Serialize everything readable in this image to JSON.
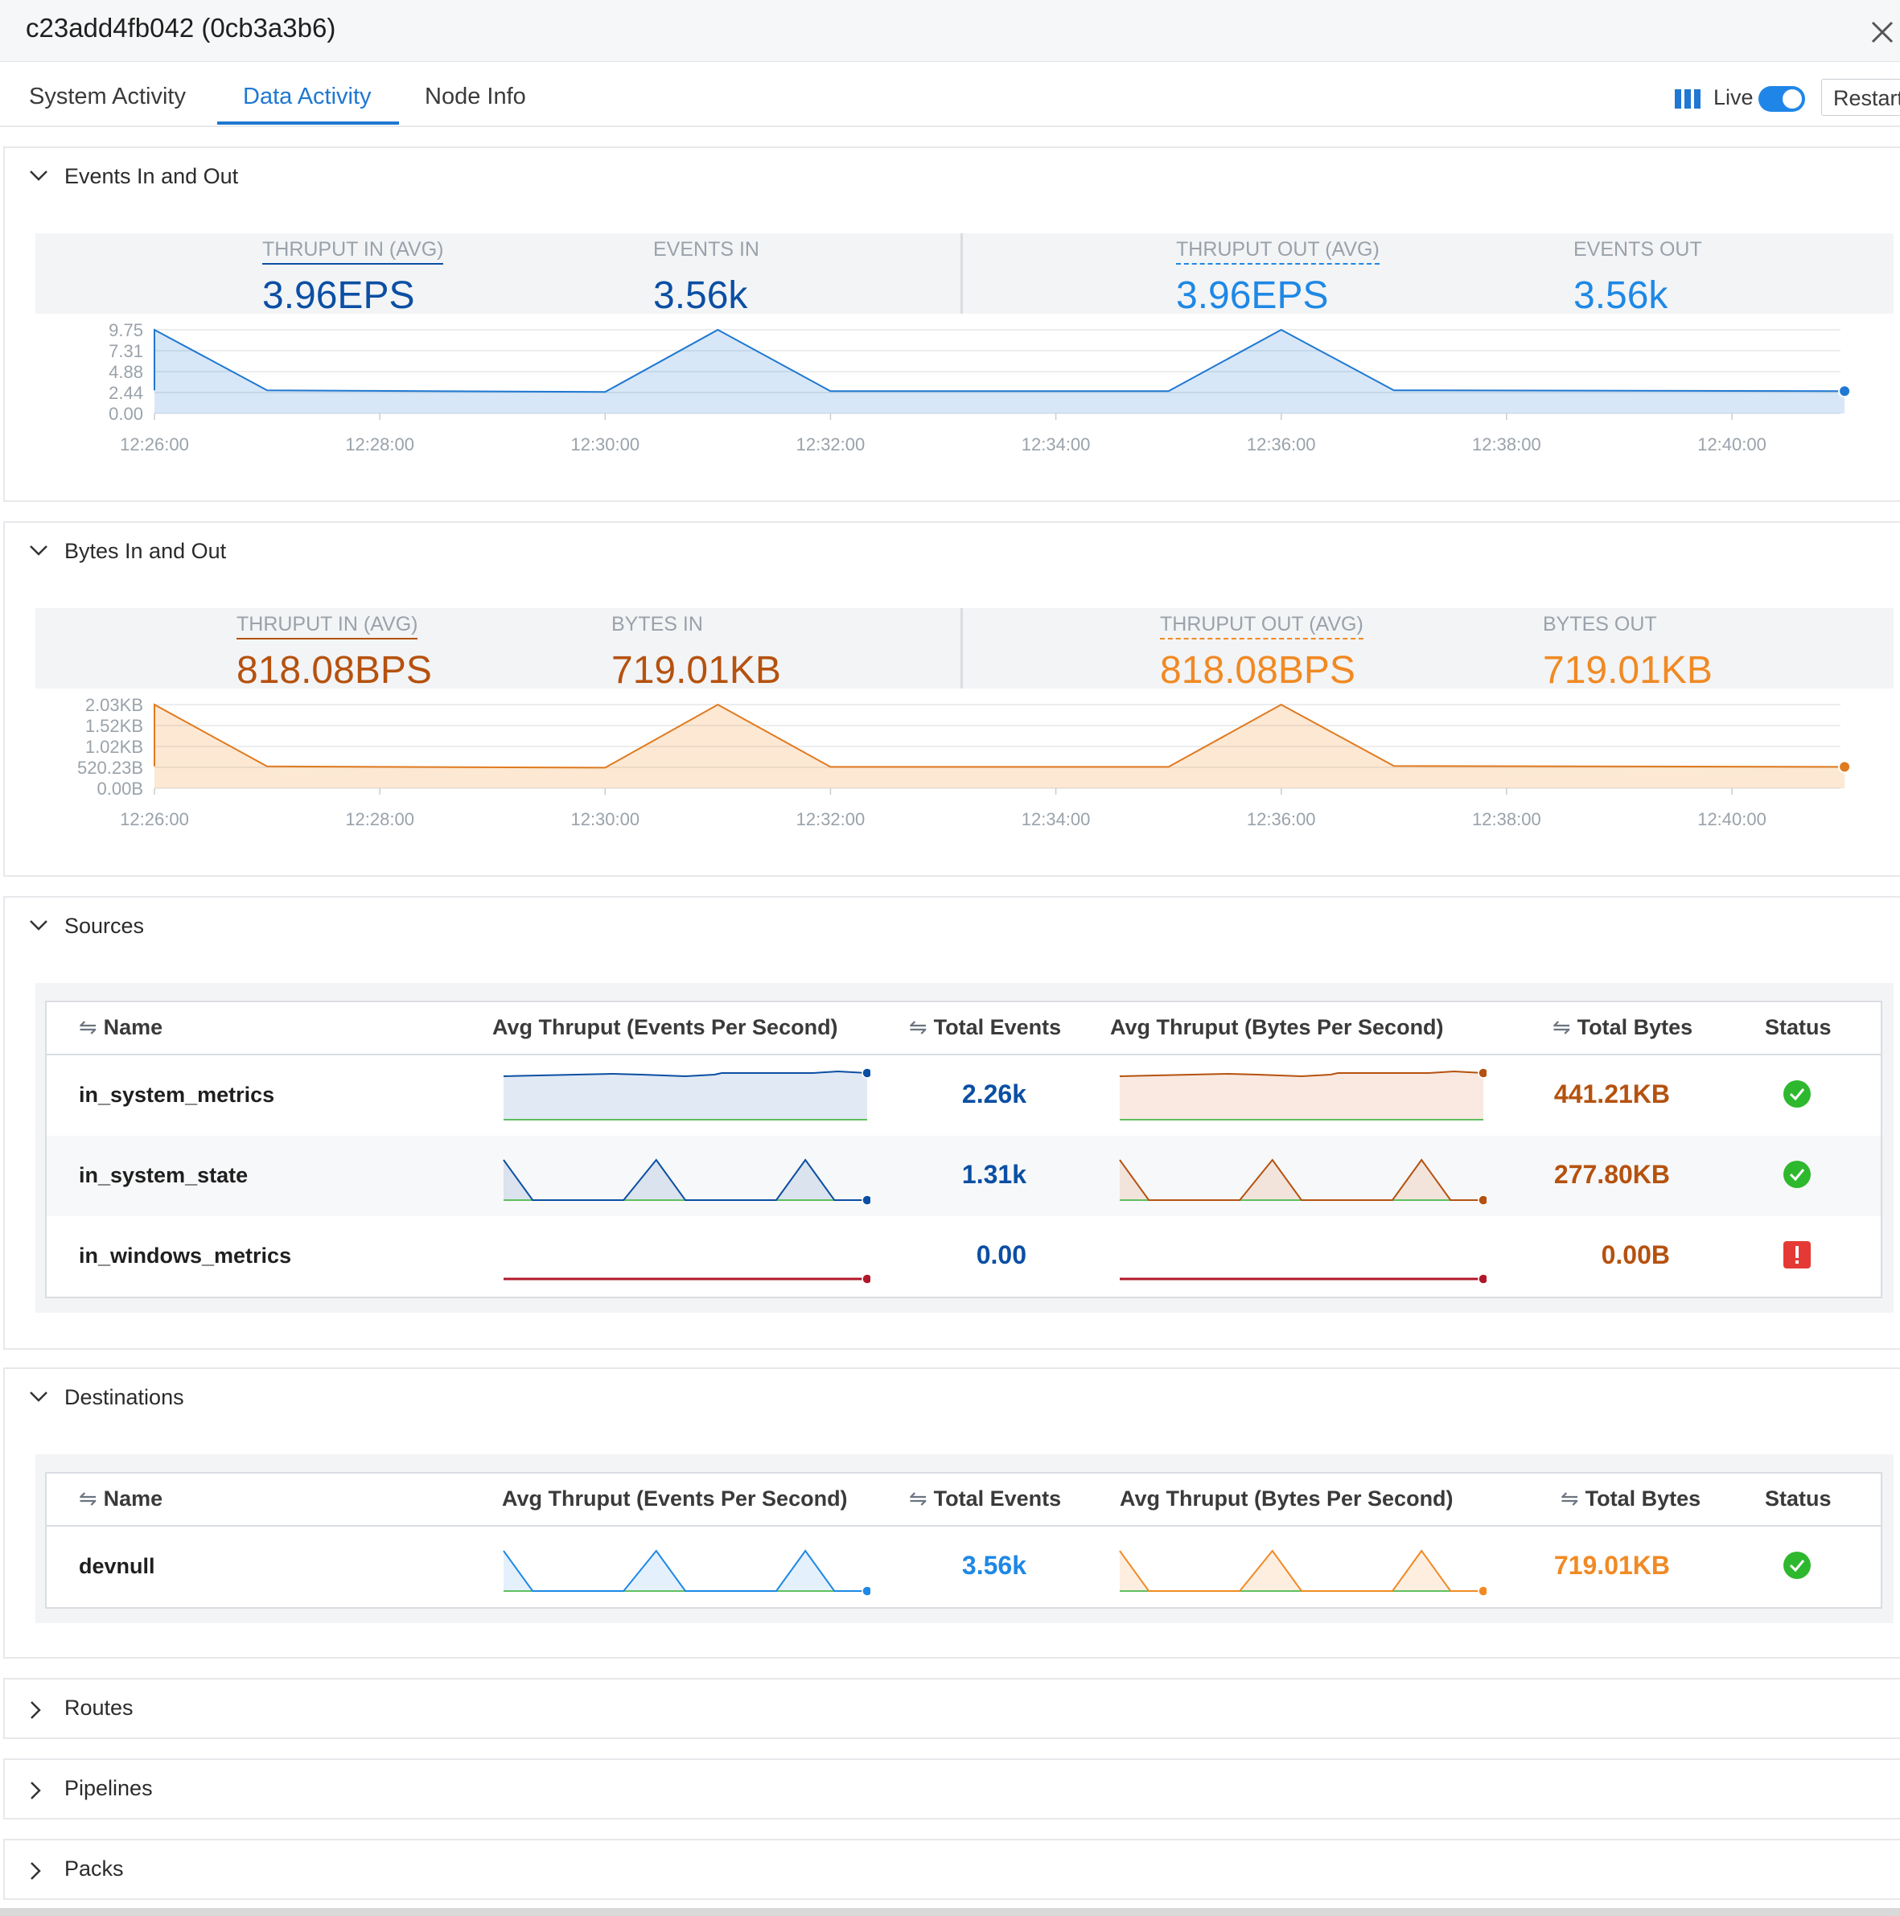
{
  "window": {
    "title": "c23add4fb042 (0cb3a3b6)"
  },
  "tabs": [
    {
      "label": "System Activity"
    },
    {
      "label": "Data Activity"
    },
    {
      "label": "Node Info"
    }
  ],
  "live": {
    "label": "Live",
    "enabled": true,
    "restart_label": "Restart"
  },
  "colors": {
    "accent_blue": "#1f78d1",
    "dark_blue": "#0b4fa3",
    "light_blue": "#1e88e5",
    "dark_orange": "#b5520f",
    "light_orange": "#f08a24",
    "success_green": "#2eb82e",
    "error_red": "#e53935"
  },
  "events_section": {
    "title": "Events In and Out",
    "stats": {
      "thruput_in_label": "THRUPUT IN (AVG)",
      "thruput_in_value": "3.96EPS",
      "events_in_label": "EVENTS IN",
      "events_in_value": "3.56k",
      "thruput_out_label": "THRUPUT OUT (AVG)",
      "thruput_out_value": "3.96EPS",
      "events_out_label": "EVENTS OUT",
      "events_out_value": "3.56k"
    },
    "chart_data": {
      "type": "area",
      "yticks": [
        "9.75",
        "7.31",
        "4.88",
        "2.44",
        "0.00"
      ],
      "ylim": [
        0,
        9.75
      ],
      "xticks": [
        "12:26:00",
        "12:28:00",
        "12:30:00",
        "12:32:00",
        "12:34:00",
        "12:36:00",
        "12:38:00",
        "12:40:00"
      ],
      "x": [
        "12:26:00",
        "12:27:00",
        "12:30:00",
        "12:31:00",
        "12:32:00",
        "12:35:00",
        "12:36:00",
        "12:37:00",
        "12:41:00"
      ],
      "values": [
        9.75,
        2.7,
        2.5,
        9.75,
        2.6,
        2.6,
        9.75,
        2.7,
        2.6
      ]
    }
  },
  "bytes_section": {
    "title": "Bytes In and Out",
    "stats": {
      "thruput_in_label": "THRUPUT IN (AVG)",
      "thruput_in_value": "818.08BPS",
      "bytes_in_label": "BYTES IN",
      "bytes_in_value": "719.01KB",
      "thruput_out_label": "THRUPUT OUT (AVG)",
      "thruput_out_value": "818.08BPS",
      "bytes_out_label": "BYTES OUT",
      "bytes_out_value": "719.01KB"
    },
    "chart_data": {
      "type": "area",
      "yticks": [
        "2.03KB",
        "1.52KB",
        "1.02KB",
        "520.23B",
        "0.00B"
      ],
      "ylim": [
        0,
        2.03
      ],
      "xticks": [
        "12:26:00",
        "12:28:00",
        "12:30:00",
        "12:32:00",
        "12:34:00",
        "12:36:00",
        "12:38:00",
        "12:40:00"
      ],
      "x": [
        "12:26:00",
        "12:27:00",
        "12:30:00",
        "12:31:00",
        "12:32:00",
        "12:35:00",
        "12:36:00",
        "12:37:00",
        "12:41:00"
      ],
      "values": [
        2.03,
        0.53,
        0.5,
        2.03,
        0.52,
        0.52,
        2.03,
        0.54,
        0.52
      ]
    }
  },
  "sources": {
    "title": "Sources",
    "headers": {
      "name": "Name",
      "avg_eps": "Avg Thruput (Events Per Second)",
      "total_events": "Total Events",
      "avg_bps": "Avg Thruput (Bytes Per Second)",
      "total_bytes": "Total Bytes",
      "status": "Status"
    },
    "rows": [
      {
        "name": "in_system_metrics",
        "total_events": "2.26k",
        "total_bytes": "441.21KB",
        "status": "ok",
        "spark": "flat-high"
      },
      {
        "name": "in_system_state",
        "total_events": "1.31k",
        "total_bytes": "277.80KB",
        "status": "ok",
        "spark": "peaks"
      },
      {
        "name": "in_windows_metrics",
        "total_events": "0.00",
        "total_bytes": "0.00B",
        "status": "error",
        "spark": "zero"
      }
    ]
  },
  "destinations": {
    "title": "Destinations",
    "headers": {
      "name": "Name",
      "avg_eps": "Avg Thruput (Events Per Second)",
      "total_events": "Total Events",
      "avg_bps": "Avg Thruput (Bytes Per Second)",
      "total_bytes": "Total Bytes",
      "status": "Status"
    },
    "rows": [
      {
        "name": "devnull",
        "total_events": "3.56k",
        "total_bytes": "719.01KB",
        "status": "ok",
        "spark": "peaks"
      }
    ]
  },
  "collapsed_sections": [
    {
      "title": "Routes"
    },
    {
      "title": "Pipelines"
    },
    {
      "title": "Packs"
    }
  ],
  "icons": {
    "close": "close-icon",
    "chevron_down": "chevron-down-icon",
    "chevron_right": "chevron-right-icon",
    "sort": "sort-icon",
    "status_ok": "check-circle-icon",
    "status_error": "error-icon",
    "live": "bars-icon"
  }
}
